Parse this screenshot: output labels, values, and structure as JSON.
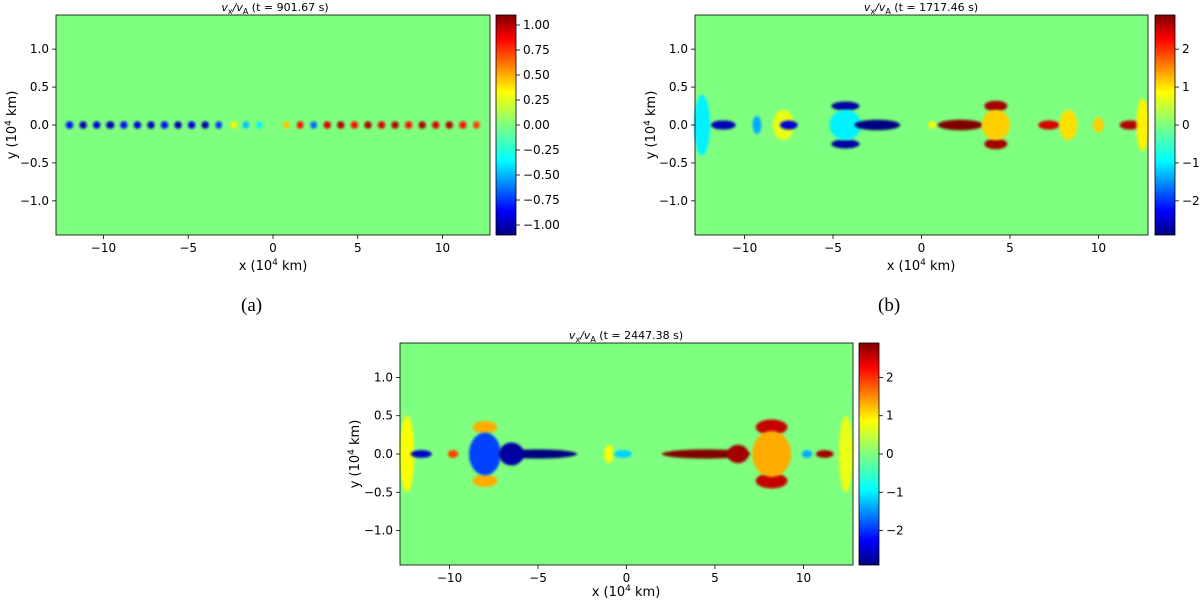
{
  "chart_data": [
    {
      "type": "heatmap",
      "title_var": "v",
      "title_sub1": "x",
      "title_sep": "/v",
      "title_sub2": "A",
      "title_time": " (t = 901.67 s)",
      "xlabel_pre": "x (10",
      "xlabel_exp": "4",
      "xlabel_post": " km)",
      "ylabel_pre": "y (10",
      "ylabel_exp": "4",
      "ylabel_post": " km)",
      "xlim": [
        -12.8,
        12.8
      ],
      "ylim": [
        -1.45,
        1.45
      ],
      "xticks": [
        -10,
        -5,
        0,
        5,
        10
      ],
      "xtick_labels": [
        "−10",
        "−5",
        "0",
        "5",
        "10"
      ],
      "yticks": [
        1.0,
        0.5,
        0.0,
        -0.5,
        -1.0
      ],
      "ytick_labels": [
        "1.0",
        "0.5",
        "0.0",
        "−0.5",
        "−1.0"
      ],
      "colorbar": {
        "range": [
          -1.1,
          1.1
        ],
        "ticks": [
          1.0,
          0.75,
          0.5,
          0.25,
          0.0,
          -0.25,
          -0.5,
          -0.75,
          -1.0
        ],
        "tick_labels": [
          "1.00",
          "0.75",
          "0.50",
          "0.25",
          "0.00",
          "−0.25",
          "−0.50",
          "−0.75",
          "−1.00"
        ]
      },
      "caption": "(a)"
    },
    {
      "type": "heatmap",
      "title_var": "v",
      "title_sub1": "x",
      "title_sep": "/v",
      "title_sub2": "A",
      "title_time": " (t = 1717.46 s)",
      "xlabel_pre": "x (10",
      "xlabel_exp": "4",
      "xlabel_post": " km)",
      "ylabel_pre": "y (10",
      "ylabel_exp": "4",
      "ylabel_post": " km)",
      "xlim": [
        -12.8,
        12.8
      ],
      "ylim": [
        -1.45,
        1.45
      ],
      "xticks": [
        -10,
        -5,
        0,
        5,
        10
      ],
      "xtick_labels": [
        "−10",
        "−5",
        "0",
        "5",
        "10"
      ],
      "yticks": [
        1.0,
        0.5,
        0.0,
        -0.5,
        -1.0
      ],
      "ytick_labels": [
        "1.0",
        "0.5",
        "0.0",
        "−0.5",
        "−1.0"
      ],
      "colorbar": {
        "range": [
          -2.9,
          2.9
        ],
        "ticks": [
          2,
          1,
          0,
          -1,
          -2
        ],
        "tick_labels": [
          "2",
          "1",
          "0",
          "−1",
          "−2"
        ]
      },
      "caption": "(b)"
    },
    {
      "type": "heatmap",
      "title_var": "v",
      "title_sub1": "x",
      "title_sep": "/v",
      "title_sub2": "A",
      "title_time": " (t = 2447.38 s)",
      "xlabel_pre": "x (10",
      "xlabel_exp": "4",
      "xlabel_post": " km)",
      "ylabel_pre": "y (10",
      "ylabel_exp": "4",
      "ylabel_post": " km)",
      "xlim": [
        -12.8,
        12.8
      ],
      "ylim": [
        -1.45,
        1.45
      ],
      "xticks": [
        -10,
        -5,
        0,
        5,
        10
      ],
      "xtick_labels": [
        "−10",
        "−5",
        "0",
        "5",
        "10"
      ],
      "yticks": [
        1.0,
        0.5,
        0.0,
        -0.5,
        -1.0
      ],
      "ytick_labels": [
        "1.0",
        "0.5",
        "0.0",
        "−0.5",
        "−1.0"
      ],
      "colorbar": {
        "range": [
          -2.9,
          2.9
        ],
        "ticks": [
          2,
          1,
          0,
          -1,
          -2
        ],
        "tick_labels": [
          "2",
          "1",
          "0",
          "−1",
          "−2"
        ]
      },
      "caption": ""
    }
  ],
  "features": [
    [
      {
        "x": -12.0,
        "y": 0.0,
        "rx": 0.22,
        "ry": 0.05,
        "v": -0.8
      },
      {
        "x": -11.2,
        "y": 0.0,
        "rx": 0.22,
        "ry": 0.05,
        "v": -1.0
      },
      {
        "x": -10.4,
        "y": 0.0,
        "rx": 0.22,
        "ry": 0.05,
        "v": -0.9
      },
      {
        "x": -9.6,
        "y": 0.0,
        "rx": 0.25,
        "ry": 0.05,
        "v": -1.0
      },
      {
        "x": -8.8,
        "y": 0.0,
        "rx": 0.22,
        "ry": 0.05,
        "v": -0.8
      },
      {
        "x": -8.0,
        "y": 0.0,
        "rx": 0.22,
        "ry": 0.05,
        "v": -0.9
      },
      {
        "x": -7.2,
        "y": 0.0,
        "rx": 0.22,
        "ry": 0.05,
        "v": -1.0
      },
      {
        "x": -6.4,
        "y": 0.0,
        "rx": 0.22,
        "ry": 0.05,
        "v": -0.8
      },
      {
        "x": -5.6,
        "y": 0.0,
        "rx": 0.22,
        "ry": 0.05,
        "v": -1.0
      },
      {
        "x": -4.8,
        "y": 0.0,
        "rx": 0.22,
        "ry": 0.05,
        "v": -0.9
      },
      {
        "x": -4.0,
        "y": 0.0,
        "rx": 0.22,
        "ry": 0.05,
        "v": -1.0
      },
      {
        "x": -3.2,
        "y": 0.0,
        "rx": 0.2,
        "ry": 0.05,
        "v": -0.7
      },
      {
        "x": -2.3,
        "y": 0.0,
        "rx": 0.2,
        "ry": 0.05,
        "v": 0.3
      },
      {
        "x": -1.6,
        "y": 0.0,
        "rx": 0.2,
        "ry": 0.05,
        "v": -0.4
      },
      {
        "x": -0.8,
        "y": 0.0,
        "rx": 0.18,
        "ry": 0.05,
        "v": -0.3
      },
      {
        "x": 0.8,
        "y": 0.0,
        "rx": 0.2,
        "ry": 0.05,
        "v": 0.4
      },
      {
        "x": 1.6,
        "y": 0.0,
        "rx": 0.2,
        "ry": 0.05,
        "v": 0.8
      },
      {
        "x": 2.4,
        "y": 0.0,
        "rx": 0.2,
        "ry": 0.05,
        "v": -0.6
      },
      {
        "x": 3.2,
        "y": 0.0,
        "rx": 0.22,
        "ry": 0.05,
        "v": 0.9
      },
      {
        "x": 4.0,
        "y": 0.0,
        "rx": 0.22,
        "ry": 0.05,
        "v": 1.0
      },
      {
        "x": 4.8,
        "y": 0.0,
        "rx": 0.22,
        "ry": 0.05,
        "v": 0.8
      },
      {
        "x": 5.6,
        "y": 0.0,
        "rx": 0.22,
        "ry": 0.05,
        "v": 1.0
      },
      {
        "x": 6.4,
        "y": 0.0,
        "rx": 0.22,
        "ry": 0.05,
        "v": 0.9
      },
      {
        "x": 7.2,
        "y": 0.0,
        "rx": 0.22,
        "ry": 0.05,
        "v": 1.0
      },
      {
        "x": 8.0,
        "y": 0.0,
        "rx": 0.22,
        "ry": 0.05,
        "v": 0.8
      },
      {
        "x": 8.8,
        "y": 0.0,
        "rx": 0.22,
        "ry": 0.05,
        "v": 1.0
      },
      {
        "x": 9.6,
        "y": 0.0,
        "rx": 0.22,
        "ry": 0.05,
        "v": 0.9
      },
      {
        "x": 10.4,
        "y": 0.0,
        "rx": 0.22,
        "ry": 0.05,
        "v": 1.0
      },
      {
        "x": 11.2,
        "y": 0.0,
        "rx": 0.22,
        "ry": 0.05,
        "v": 0.8
      },
      {
        "x": 12.0,
        "y": 0.0,
        "rx": 0.2,
        "ry": 0.05,
        "v": 0.7
      }
    ],
    [
      {
        "x": -12.4,
        "y": 0.0,
        "rx": 0.45,
        "ry": 0.4,
        "v": -0.8
      },
      {
        "x": -11.2,
        "y": 0.0,
        "rx": 0.7,
        "ry": 0.06,
        "v": -2.6
      },
      {
        "x": -9.3,
        "y": 0.0,
        "rx": 0.25,
        "ry": 0.12,
        "v": -1.2
      },
      {
        "x": -7.8,
        "y": 0.0,
        "rx": 0.6,
        "ry": 0.2,
        "v": 0.6
      },
      {
        "x": -7.5,
        "y": 0.0,
        "rx": 0.5,
        "ry": 0.06,
        "v": -2.4
      },
      {
        "x": -4.3,
        "y": 0.25,
        "rx": 0.8,
        "ry": 0.06,
        "v": -2.7
      },
      {
        "x": -4.3,
        "y": -0.25,
        "rx": 0.8,
        "ry": 0.06,
        "v": -2.7
      },
      {
        "x": -4.3,
        "y": 0.0,
        "rx": 0.9,
        "ry": 0.2,
        "v": -0.8
      },
      {
        "x": -2.5,
        "y": 0.0,
        "rx": 1.3,
        "ry": 0.07,
        "v": -2.9
      },
      {
        "x": 0.6,
        "y": 0.0,
        "rx": 0.2,
        "ry": 0.05,
        "v": 0.7
      },
      {
        "x": 2.2,
        "y": 0.0,
        "rx": 1.3,
        "ry": 0.07,
        "v": 2.9
      },
      {
        "x": 4.2,
        "y": 0.25,
        "rx": 0.65,
        "ry": 0.07,
        "v": 2.7
      },
      {
        "x": 4.2,
        "y": -0.25,
        "rx": 0.65,
        "ry": 0.07,
        "v": 2.7
      },
      {
        "x": 4.2,
        "y": 0.0,
        "rx": 0.8,
        "ry": 0.2,
        "v": 1.0
      },
      {
        "x": 7.2,
        "y": 0.0,
        "rx": 0.6,
        "ry": 0.06,
        "v": 2.4
      },
      {
        "x": 8.3,
        "y": 0.0,
        "rx": 0.5,
        "ry": 0.2,
        "v": 0.9
      },
      {
        "x": 10.0,
        "y": 0.0,
        "rx": 0.3,
        "ry": 0.1,
        "v": 1.0
      },
      {
        "x": 11.8,
        "y": 0.0,
        "rx": 0.6,
        "ry": 0.06,
        "v": 2.6
      },
      {
        "x": 12.5,
        "y": 0.0,
        "rx": 0.35,
        "ry": 0.35,
        "v": 0.8
      }
    ],
    [
      {
        "x": -12.4,
        "y": 0.0,
        "rx": 0.4,
        "ry": 0.5,
        "v": 0.7
      },
      {
        "x": -11.6,
        "y": 0.0,
        "rx": 0.6,
        "ry": 0.05,
        "v": -2.5
      },
      {
        "x": -9.8,
        "y": 0.0,
        "rx": 0.3,
        "ry": 0.05,
        "v": 1.8
      },
      {
        "x": -8.0,
        "y": 0.35,
        "rx": 0.7,
        "ry": 0.08,
        "v": 1.2
      },
      {
        "x": -8.0,
        "y": -0.35,
        "rx": 0.7,
        "ry": 0.08,
        "v": 1.2
      },
      {
        "x": -8.0,
        "y": 0.0,
        "rx": 0.9,
        "ry": 0.28,
        "v": -1.8
      },
      {
        "x": -5.0,
        "y": 0.0,
        "rx": 2.2,
        "ry": 0.06,
        "v": -2.9
      },
      {
        "x": -6.5,
        "y": 0.0,
        "rx": 0.7,
        "ry": 0.15,
        "v": -2.7
      },
      {
        "x": -1.0,
        "y": 0.0,
        "rx": 0.25,
        "ry": 0.12,
        "v": 0.7
      },
      {
        "x": -0.2,
        "y": 0.0,
        "rx": 0.5,
        "ry": 0.05,
        "v": -1.0
      },
      {
        "x": 4.5,
        "y": 0.0,
        "rx": 2.5,
        "ry": 0.06,
        "v": 2.9
      },
      {
        "x": 6.3,
        "y": 0.0,
        "rx": 0.6,
        "ry": 0.12,
        "v": 2.7
      },
      {
        "x": 8.2,
        "y": 0.35,
        "rx": 0.9,
        "ry": 0.1,
        "v": 2.5
      },
      {
        "x": 8.2,
        "y": -0.35,
        "rx": 0.9,
        "ry": 0.1,
        "v": 2.5
      },
      {
        "x": 8.2,
        "y": 0.0,
        "rx": 1.1,
        "ry": 0.3,
        "v": 1.2
      },
      {
        "x": 10.2,
        "y": 0.0,
        "rx": 0.3,
        "ry": 0.05,
        "v": -1.2
      },
      {
        "x": 11.2,
        "y": 0.0,
        "rx": 0.5,
        "ry": 0.05,
        "v": 2.7
      },
      {
        "x": 12.4,
        "y": 0.0,
        "rx": 0.4,
        "ry": 0.5,
        "v": 0.6
      }
    ]
  ]
}
